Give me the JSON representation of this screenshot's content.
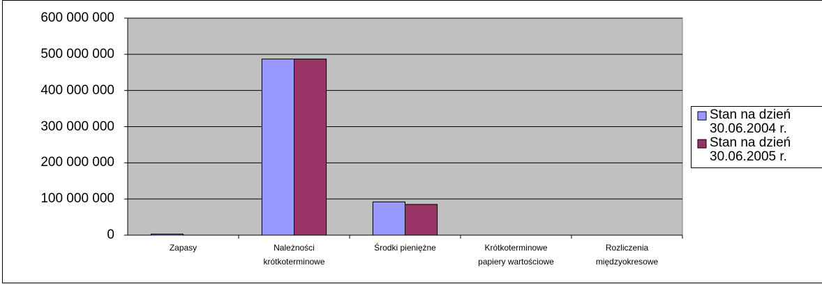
{
  "chart_data": {
    "type": "bar",
    "categories": [
      "Zapasy",
      "Należności\nkrótkoterminowe",
      "Środki pieniężne",
      "Krótkoterminowe\npapiery wartościowe",
      "Rozliczenia\nmiędzyokresowe"
    ],
    "series": [
      {
        "name": "Stan na dzień\n30.06.2004 r.",
        "color": "#9999ff",
        "values": [
          3000000,
          487000000,
          92000000,
          0,
          0
        ]
      },
      {
        "name": "Stan na dzień\n30.06.2005 r.",
        "color": "#993366",
        "values": [
          0,
          487000000,
          85000000,
          0,
          0
        ]
      }
    ],
    "ylim": [
      0,
      600000000
    ],
    "yticks": [
      0,
      {
        "value": 100000000,
        "label": "100 000 000"
      },
      {
        "value": 200000000,
        "label": "200 000 000"
      },
      {
        "value": 300000000,
        "label": "300 000 000"
      },
      {
        "value": 400000000,
        "label": "400 000 000"
      },
      {
        "value": 500000000,
        "label": "500 000 000"
      },
      {
        "value": 600000000,
        "label": "600 000 000"
      }
    ],
    "grid": true,
    "legend": "right",
    "plot_background": "#c0c0c0"
  }
}
